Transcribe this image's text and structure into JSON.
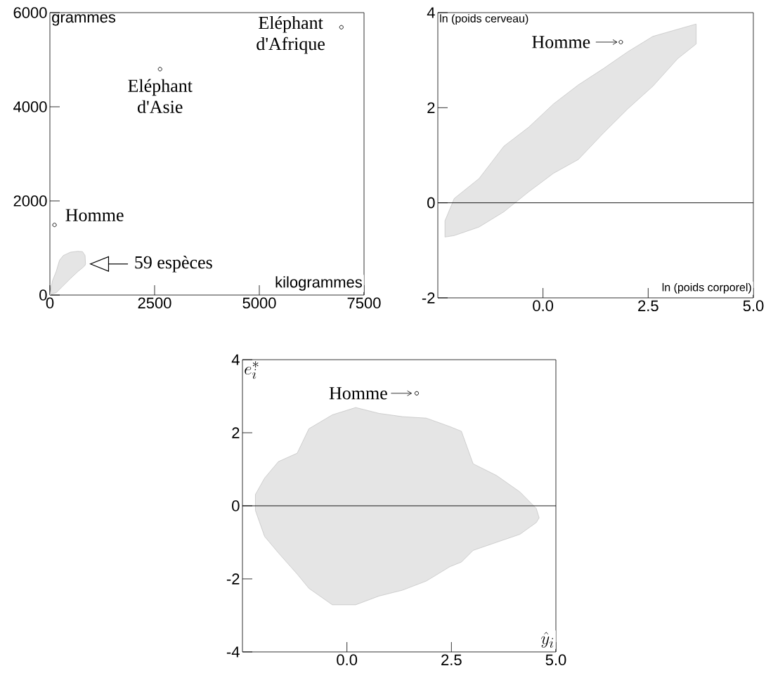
{
  "chart_data": [
    {
      "type": "scatter",
      "xlabel": "kilogrammes",
      "ylabel": "grammes",
      "xlim": [
        0,
        7500
      ],
      "ylim": [
        0,
        6000
      ],
      "xticks": [
        0,
        2500,
        5000,
        7500
      ],
      "yticks": [
        0,
        2000,
        4000,
        6000
      ],
      "marker": "circle",
      "series": [
        {
          "type": "area",
          "color": "#e5e5e5",
          "values": [
            null,
            null,
            null,
            null,
            null,
            null,
            null,
            null,
            null,
            null
          ],
          "x": [
            0,
            60,
            150,
            230,
            320,
            490,
            670,
            780,
            840,
            850
          ],
          "lower": [
            0,
            30,
            50,
            120,
            200,
            350,
            500,
            580,
            630,
            660
          ],
          "upper": [
            0,
            300,
            500,
            740,
            840,
            910,
            930,
            920,
            840,
            660
          ]
        },
        {
          "type": "scatter",
          "color": "#000000",
          "x": [
            110,
            2630,
            6960
          ],
          "values": [
            1490,
            4800,
            5690
          ]
        }
      ],
      "annotations": [
        {
          "text": "Eléphant d'Afrique",
          "x": 6960,
          "y": 5690
        },
        {
          "text": "Eléphant d'Asie",
          "x": 2630,
          "y": 4800
        },
        {
          "text": "Homme",
          "x": 110,
          "y": 1490
        },
        {
          "text": "59 espèces",
          "x": 850,
          "y": 660
        }
      ]
    },
    {
      "type": "scatter",
      "xlabel": "ln (poids corporel)",
      "ylabel": "ln (poids cerveau)",
      "xlim": [
        -2.5,
        5
      ],
      "ylim": [
        -2,
        4
      ],
      "xticks": [
        {
          "value": 0,
          "label": "0.0"
        },
        {
          "value": 2.5,
          "label": "2.5"
        },
        {
          "value": 5,
          "label": "5.0"
        }
      ],
      "yticks": [
        -2,
        0,
        2,
        4
      ],
      "marker": "circle",
      "series": [
        {
          "type": "area",
          "color": "#e5e5e5",
          "values": [
            null,
            null,
            null,
            null,
            null,
            null,
            null,
            null,
            null,
            null,
            null,
            null
          ],
          "x": [
            -2.33,
            -2.11,
            -1.52,
            -0.93,
            -0.34,
            0.25,
            0.84,
            1.43,
            2.02,
            2.61,
            3.2,
            3.64
          ],
          "lower": [
            -0.72,
            -0.69,
            -0.51,
            -0.19,
            0.23,
            0.62,
            0.91,
            1.46,
            1.98,
            2.45,
            3.03,
            3.34
          ],
          "upper": [
            -0.38,
            0.09,
            0.51,
            1.19,
            1.59,
            2.08,
            2.48,
            2.82,
            3.18,
            3.5,
            3.65,
            3.76
          ]
        },
        {
          "type": "scatter",
          "color": "#000000",
          "x": [
            1.85
          ],
          "values": [
            3.38
          ]
        }
      ],
      "ref_lines": [
        {
          "axis": "y",
          "value": 0
        }
      ],
      "annotations": [
        {
          "text": "Homme",
          "x": 1.85,
          "y": 3.38
        }
      ]
    },
    {
      "type": "scatter",
      "xlabel": "\\hat{y}_i",
      "ylabel": "e_i^*",
      "xlim": [
        -2.5,
        5
      ],
      "ylim": [
        -4,
        4
      ],
      "xticks": [
        {
          "value": 0,
          "label": "0.0"
        },
        {
          "value": 2.5,
          "label": "2.5"
        },
        {
          "value": 5,
          "label": "5.0"
        }
      ],
      "yticks": [
        -4,
        -2,
        0,
        2,
        4
      ],
      "marker": "circle",
      "series": [
        {
          "type": "area",
          "color": "#e5e5e5",
          "values": [
            null,
            null,
            null,
            null,
            null,
            null,
            null,
            null,
            null,
            null,
            null,
            null,
            null,
            null,
            null,
            null,
            null
          ],
          "x": [
            -2.19,
            -1.97,
            -1.64,
            -1.19,
            -0.91,
            -0.35,
            0.21,
            0.77,
            1.33,
            1.9,
            2.46,
            2.74,
            3.02,
            3.58,
            4.14,
            4.53,
            4.6
          ],
          "lower": [
            -0.13,
            -0.84,
            -1.29,
            -1.87,
            -2.26,
            -2.71,
            -2.71,
            -2.47,
            -2.31,
            -2.06,
            -1.67,
            -1.54,
            -1.22,
            -1.0,
            -0.78,
            -0.46,
            -0.33
          ],
          "upper": [
            0.31,
            0.76,
            1.21,
            1.44,
            2.11,
            2.49,
            2.69,
            2.53,
            2.44,
            2.4,
            2.17,
            2.04,
            1.15,
            0.83,
            0.38,
            -0.07,
            -0.33
          ]
        },
        {
          "type": "scatter",
          "color": "#000000",
          "x": [
            1.67
          ],
          "values": [
            3.08
          ]
        }
      ],
      "ref_lines": [
        {
          "axis": "y",
          "value": 0
        }
      ],
      "annotations": [
        {
          "text": "Homme",
          "x": 1.67,
          "y": 3.08
        }
      ]
    }
  ]
}
